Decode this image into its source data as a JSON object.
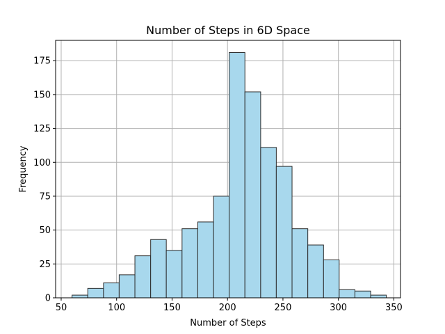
{
  "chart_data": {
    "type": "bar",
    "subtype": "histogram",
    "title": "Number of Steps in 6D Space",
    "xlabel": "Number of Steps",
    "ylabel": "Frequency",
    "xlim": [
      45,
      356
    ],
    "ylim": [
      0,
      190
    ],
    "grid": true,
    "legend": "none",
    "bar_color": "#a8d8ed",
    "edge_color": "#2b2b2b",
    "grid_color": "#b0b0b0",
    "x_ticks": [
      50,
      100,
      150,
      200,
      250,
      300,
      350
    ],
    "y_ticks": [
      0,
      25,
      50,
      75,
      100,
      125,
      150,
      175
    ],
    "bins": [
      {
        "start": 59.8,
        "end": 74.0,
        "count": 2
      },
      {
        "start": 74.0,
        "end": 88.2,
        "count": 7
      },
      {
        "start": 88.2,
        "end": 102.3,
        "count": 11
      },
      {
        "start": 102.3,
        "end": 116.5,
        "count": 17
      },
      {
        "start": 116.5,
        "end": 130.7,
        "count": 31
      },
      {
        "start": 130.7,
        "end": 144.8,
        "count": 43
      },
      {
        "start": 144.8,
        "end": 159.0,
        "count": 35
      },
      {
        "start": 159.0,
        "end": 173.2,
        "count": 51
      },
      {
        "start": 173.2,
        "end": 187.4,
        "count": 56
      },
      {
        "start": 187.4,
        "end": 201.5,
        "count": 75
      },
      {
        "start": 201.5,
        "end": 215.7,
        "count": 181
      },
      {
        "start": 215.7,
        "end": 229.9,
        "count": 152
      },
      {
        "start": 229.9,
        "end": 244.0,
        "count": 111
      },
      {
        "start": 244.0,
        "end": 258.2,
        "count": 97
      },
      {
        "start": 258.2,
        "end": 272.4,
        "count": 51
      },
      {
        "start": 272.4,
        "end": 286.6,
        "count": 39
      },
      {
        "start": 286.6,
        "end": 300.7,
        "count": 28
      },
      {
        "start": 300.7,
        "end": 314.9,
        "count": 6
      },
      {
        "start": 314.9,
        "end": 329.1,
        "count": 5
      },
      {
        "start": 329.1,
        "end": 343.2,
        "count": 2
      }
    ]
  }
}
